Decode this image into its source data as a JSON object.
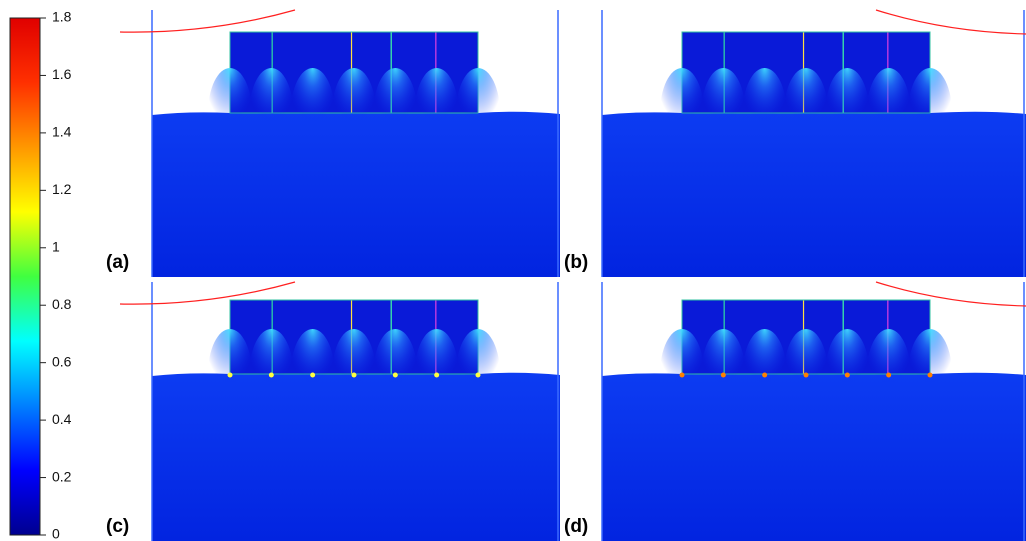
{
  "colorbar": {
    "range": [
      0,
      1.8
    ],
    "ticks": [
      0,
      0.2,
      0.4,
      0.6,
      0.8,
      1,
      1.2,
      1.4,
      1.6,
      1.8
    ]
  },
  "panels": [
    {
      "label": "(a)"
    },
    {
      "label": "(b)"
    },
    {
      "label": "(c)"
    },
    {
      "label": "(d)"
    }
  ]
}
